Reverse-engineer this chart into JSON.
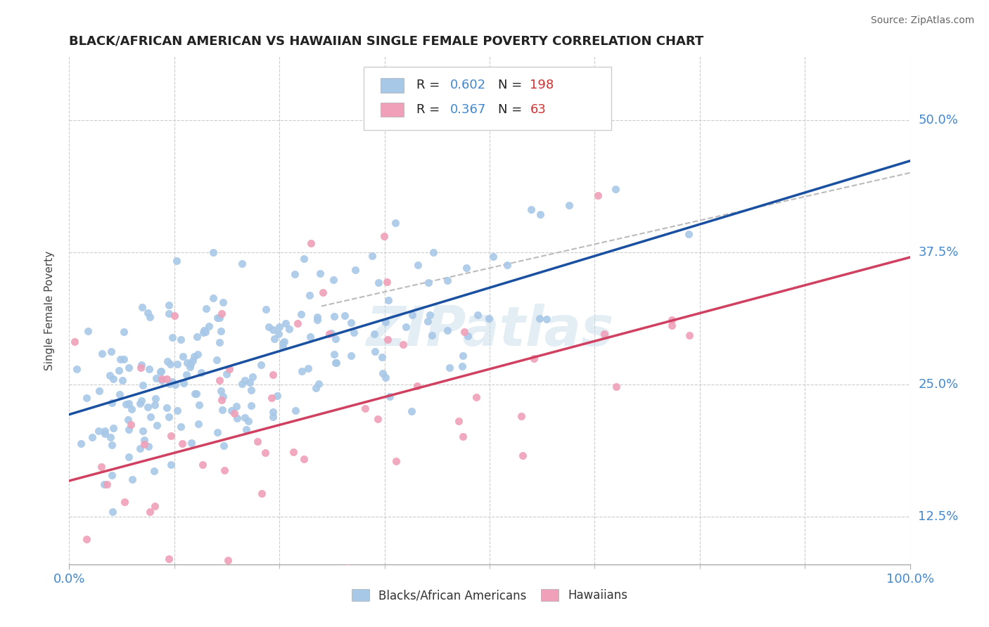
{
  "title": "BLACK/AFRICAN AMERICAN VS HAWAIIAN SINGLE FEMALE POVERTY CORRELATION CHART",
  "source": "Source: ZipAtlas.com",
  "ylabel": "Single Female Poverty",
  "watermark": "ZIPatlas",
  "legend_blue_R": "0.602",
  "legend_blue_N": "198",
  "legend_pink_R": "0.367",
  "legend_pink_N": "63",
  "blue_color": "#A8C8E8",
  "pink_color": "#F0A0B8",
  "blue_line_color": "#1A50A0",
  "pink_line_color": "#D04060",
  "dashed_line_color": "#BBBBBB",
  "xlim": [
    0.0,
    1.0
  ],
  "ylim": [
    0.08,
    0.56
  ],
  "yticks": [
    0.125,
    0.25,
    0.375,
    0.5
  ],
  "ytick_labels": [
    "12.5%",
    "25.0%",
    "37.5%",
    "50.0%"
  ],
  "background_color": "#FFFFFF",
  "grid_color": "#CCCCCC"
}
